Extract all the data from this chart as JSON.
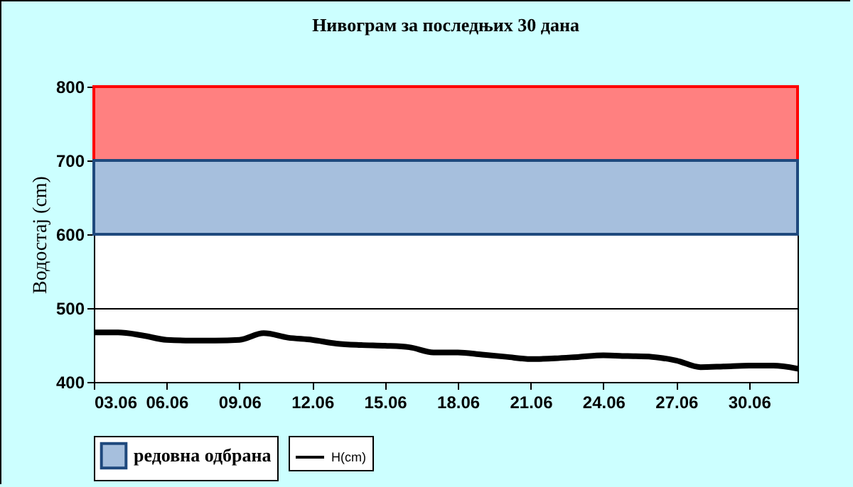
{
  "chart_data": {
    "type": "line",
    "title": "Нивограм за последњих 30 дана",
    "ylabel": "Водостај (cm)",
    "x": [
      "--06-03",
      "--06-04",
      "--06-05",
      "--06-06",
      "--06-07",
      "--06-08",
      "--06-09",
      "--06-10",
      "--06-11",
      "--06-12",
      "--06-13",
      "--06-14",
      "--06-15",
      "--06-16",
      "--06-17",
      "--06-18",
      "--06-19",
      "--06-20",
      "--06-21",
      "--06-22",
      "--06-23",
      "--06-24",
      "--06-25",
      "--06-26",
      "--06-27",
      "--06-28",
      "--06-29",
      "--06-30",
      "--07-01",
      "--07-02"
    ],
    "series": [
      {
        "name": "H(cm)",
        "color": "#000000",
        "values": [
          467,
          467,
          463,
          457,
          456,
          456,
          457,
          466,
          460,
          457,
          452,
          450,
          449,
          447,
          440,
          440,
          437,
          434,
          431,
          432,
          434,
          436,
          435,
          434,
          429,
          420,
          421,
          422,
          422,
          418
        ]
      }
    ],
    "xlim": [
      "--06-03",
      "--07-02"
    ],
    "xticks": [
      {
        "value": "--06-03",
        "label": "03.06"
      },
      {
        "value": "--06-06",
        "label": "06.06"
      },
      {
        "value": "--06-09",
        "label": "09.06"
      },
      {
        "value": "--06-12",
        "label": "12.06"
      },
      {
        "value": "--06-15",
        "label": "15.06"
      },
      {
        "value": "--06-18",
        "label": "18.06"
      },
      {
        "value": "--06-21",
        "label": "21.06"
      },
      {
        "value": "--06-24",
        "label": "24.06"
      },
      {
        "value": "--06-27",
        "label": "27.06"
      },
      {
        "value": "--06-30",
        "label": "30.06"
      }
    ],
    "ylim": [
      400,
      800
    ],
    "yticks": [
      400,
      500,
      600,
      700,
      800
    ],
    "bands": [
      {
        "axis": "y",
        "from": 700,
        "to": 800,
        "color": "#ff8080"
      },
      {
        "axis": "y",
        "from": 600,
        "to": 700,
        "color": "#a6bfdd",
        "label": "редовна одбрана"
      }
    ],
    "grid": "y",
    "legend": "bottom",
    "marker": "none",
    "line_style": "solid"
  }
}
